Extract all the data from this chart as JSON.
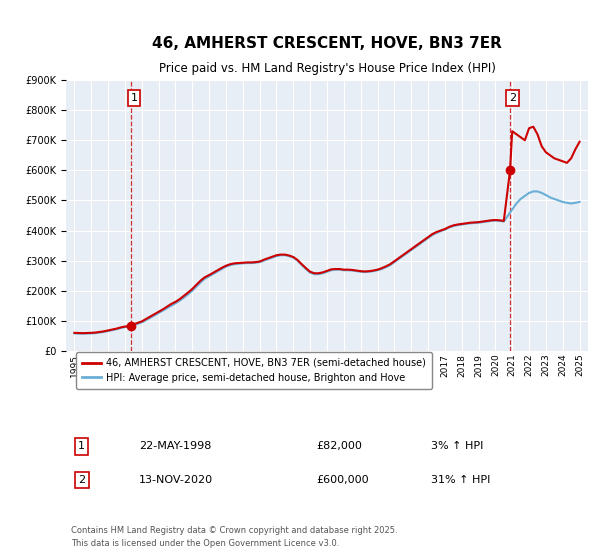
{
  "title": "46, AMHERST CRESCENT, HOVE, BN3 7ER",
  "subtitle": "Price paid vs. HM Land Registry's House Price Index (HPI)",
  "bg_color": "#f0f4f8",
  "plot_bg_color": "#e8eef5",
  "grid_color": "#ffffff",
  "sale1_date": 1998.38,
  "sale1_price": 82000,
  "sale2_date": 2020.87,
  "sale2_price": 600000,
  "ylim_max": 900000,
  "xlim_min": 1994.5,
  "xlim_max": 2025.5,
  "legend_line1": "46, AMHERST CRESCENT, HOVE, BN3 7ER (semi-detached house)",
  "legend_line2": "HPI: Average price, semi-detached house, Brighton and Hove",
  "annotation1_label": "1",
  "annotation1_date_str": "22-MAY-1998",
  "annotation1_price_str": "£82,000",
  "annotation1_pct_str": "3% ↑ HPI",
  "annotation2_label": "2",
  "annotation2_date_str": "13-NOV-2020",
  "annotation2_price_str": "£600,000",
  "annotation2_pct_str": "31% ↑ HPI",
  "footer": "Contains HM Land Registry data © Crown copyright and database right 2025.\nThis data is licensed under the Open Government Licence v3.0.",
  "hpi_color": "#6baed6",
  "price_color": "#cc0000",
  "dashed_vline_color": "#cc0000",
  "marker_color": "#cc0000",
  "hpi_data": {
    "dates": [
      1995.0,
      1995.25,
      1995.5,
      1995.75,
      1996.0,
      1996.25,
      1996.5,
      1996.75,
      1997.0,
      1997.25,
      1997.5,
      1997.75,
      1998.0,
      1998.25,
      1998.5,
      1998.75,
      1999.0,
      1999.25,
      1999.5,
      1999.75,
      2000.0,
      2000.25,
      2000.5,
      2000.75,
      2001.0,
      2001.25,
      2001.5,
      2001.75,
      2002.0,
      2002.25,
      2002.5,
      2002.75,
      2003.0,
      2003.25,
      2003.5,
      2003.75,
      2004.0,
      2004.25,
      2004.5,
      2004.75,
      2005.0,
      2005.25,
      2005.5,
      2005.75,
      2006.0,
      2006.25,
      2006.5,
      2006.75,
      2007.0,
      2007.25,
      2007.5,
      2007.75,
      2008.0,
      2008.25,
      2008.5,
      2008.75,
      2009.0,
      2009.25,
      2009.5,
      2009.75,
      2010.0,
      2010.25,
      2010.5,
      2010.75,
      2011.0,
      2011.25,
      2011.5,
      2011.75,
      2012.0,
      2012.25,
      2012.5,
      2012.75,
      2013.0,
      2013.25,
      2013.5,
      2013.75,
      2014.0,
      2014.25,
      2014.5,
      2014.75,
      2015.0,
      2015.25,
      2015.5,
      2015.75,
      2016.0,
      2016.25,
      2016.5,
      2016.75,
      2017.0,
      2017.25,
      2017.5,
      2017.75,
      2018.0,
      2018.25,
      2018.5,
      2018.75,
      2019.0,
      2019.25,
      2019.5,
      2019.75,
      2020.0,
      2020.25,
      2020.5,
      2020.75,
      2021.0,
      2021.25,
      2021.5,
      2021.75,
      2022.0,
      2022.25,
      2022.5,
      2022.75,
      2023.0,
      2023.25,
      2023.5,
      2023.75,
      2024.0,
      2024.25,
      2024.5,
      2024.75,
      2025.0
    ],
    "values": [
      58000,
      57500,
      57000,
      57500,
      58000,
      59000,
      61000,
      63000,
      66000,
      69000,
      72000,
      76000,
      79000,
      82000,
      86000,
      90000,
      95000,
      102000,
      110000,
      118000,
      126000,
      134000,
      142000,
      150000,
      158000,
      167000,
      177000,
      188000,
      200000,
      214000,
      228000,
      240000,
      248000,
      256000,
      264000,
      272000,
      280000,
      285000,
      288000,
      290000,
      291000,
      292000,
      292000,
      293000,
      295000,
      300000,
      305000,
      310000,
      315000,
      318000,
      318000,
      315000,
      310000,
      300000,
      285000,
      272000,
      260000,
      255000,
      255000,
      258000,
      263000,
      268000,
      270000,
      270000,
      268000,
      268000,
      267000,
      265000,
      263000,
      262000,
      263000,
      265000,
      268000,
      272000,
      278000,
      285000,
      295000,
      305000,
      315000,
      325000,
      335000,
      345000,
      355000,
      365000,
      375000,
      385000,
      392000,
      398000,
      403000,
      410000,
      415000,
      418000,
      420000,
      422000,
      424000,
      425000,
      426000,
      428000,
      430000,
      432000,
      433000,
      432000,
      430000,
      450000,
      470000,
      490000,
      505000,
      515000,
      525000,
      530000,
      530000,
      525000,
      518000,
      510000,
      505000,
      500000,
      495000,
      492000,
      490000,
      492000,
      495000
    ]
  },
  "price_data": {
    "dates": [
      1995.0,
      1995.25,
      1995.5,
      1995.75,
      1996.0,
      1996.25,
      1996.5,
      1996.75,
      1997.0,
      1997.25,
      1997.5,
      1997.75,
      1998.0,
      1998.38,
      1998.5,
      1998.75,
      1999.0,
      1999.25,
      1999.5,
      1999.75,
      2000.0,
      2000.25,
      2000.5,
      2000.75,
      2001.0,
      2001.25,
      2001.5,
      2001.75,
      2002.0,
      2002.25,
      2002.5,
      2002.75,
      2003.0,
      2003.25,
      2003.5,
      2003.75,
      2004.0,
      2004.25,
      2004.5,
      2004.75,
      2005.0,
      2005.25,
      2005.5,
      2005.75,
      2006.0,
      2006.25,
      2006.5,
      2006.75,
      2007.0,
      2007.25,
      2007.5,
      2007.75,
      2008.0,
      2008.25,
      2008.5,
      2008.75,
      2009.0,
      2009.25,
      2009.5,
      2009.75,
      2010.0,
      2010.25,
      2010.5,
      2010.75,
      2011.0,
      2011.25,
      2011.5,
      2011.75,
      2012.0,
      2012.25,
      2012.5,
      2012.75,
      2013.0,
      2013.25,
      2013.5,
      2013.75,
      2014.0,
      2014.25,
      2014.5,
      2014.75,
      2015.0,
      2015.25,
      2015.5,
      2015.75,
      2016.0,
      2016.25,
      2016.5,
      2016.75,
      2017.0,
      2017.25,
      2017.5,
      2017.75,
      2018.0,
      2018.25,
      2018.5,
      2018.75,
      2019.0,
      2019.25,
      2019.5,
      2019.75,
      2020.0,
      2020.25,
      2020.5,
      2020.87,
      2021.0,
      2021.25,
      2021.5,
      2021.75,
      2022.0,
      2022.25,
      2022.5,
      2022.75,
      2023.0,
      2023.25,
      2023.5,
      2023.75,
      2024.0,
      2024.25,
      2024.5,
      2024.75,
      2025.0
    ],
    "values": [
      60000,
      59500,
      59000,
      59500,
      60000,
      61000,
      63000,
      65000,
      68000,
      71000,
      74000,
      78000,
      81000,
      82000,
      88000,
      93000,
      98000,
      106000,
      114000,
      122000,
      130000,
      138000,
      147000,
      156000,
      163000,
      172000,
      183000,
      194000,
      206000,
      220000,
      234000,
      245000,
      252000,
      260000,
      268000,
      276000,
      283000,
      288000,
      291000,
      292000,
      293000,
      294000,
      294000,
      295000,
      297000,
      303000,
      308000,
      313000,
      318000,
      320000,
      320000,
      317000,
      312000,
      302000,
      288000,
      275000,
      263000,
      258000,
      258000,
      261000,
      266000,
      271000,
      272000,
      272000,
      270000,
      270000,
      269000,
      267000,
      265000,
      264000,
      265000,
      267000,
      270000,
      275000,
      281000,
      288000,
      298000,
      308000,
      318000,
      328000,
      338000,
      348000,
      358000,
      368000,
      378000,
      388000,
      395000,
      400000,
      405000,
      412000,
      417000,
      420000,
      422000,
      424000,
      426000,
      427000,
      428000,
      430000,
      432000,
      434000,
      435000,
      434000,
      432000,
      600000,
      730000,
      720000,
      710000,
      700000,
      740000,
      745000,
      720000,
      680000,
      660000,
      650000,
      640000,
      635000,
      630000,
      625000,
      640000,
      670000,
      695000
    ]
  },
  "xticks": [
    1995,
    1996,
    1997,
    1998,
    1999,
    2000,
    2001,
    2002,
    2003,
    2004,
    2005,
    2006,
    2007,
    2008,
    2009,
    2010,
    2011,
    2012,
    2013,
    2014,
    2015,
    2016,
    2017,
    2018,
    2019,
    2020,
    2021,
    2022,
    2023,
    2024,
    2025
  ]
}
